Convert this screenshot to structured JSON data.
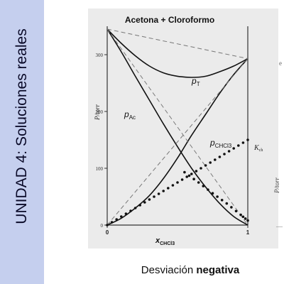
{
  "slide": {
    "sidebar_title": "UNIDAD 4: Soluciones reales",
    "caption_prefix": "Desviación ",
    "caption_bold": "negativa"
  },
  "chart_data": {
    "type": "line",
    "title": "Acetona + Cloroformo",
    "xlabel_main": "x",
    "xlabel_sub": "CHCl3",
    "ylabel_left": "P/torr",
    "ylabel_right": "P/torr",
    "xlim": [
      0,
      1
    ],
    "ylim": [
      0,
      350
    ],
    "x_ticks": [
      "0",
      "1"
    ],
    "y_ticks": [
      "0",
      "100",
      "200",
      "300"
    ],
    "pure_pressure_acetone": 345,
    "pure_pressure_chloroform": 293,
    "labels": {
      "pT": {
        "main": "p",
        "sub": "T"
      },
      "pAc": {
        "main": "p",
        "sub": "Ac"
      },
      "pCHCl3": {
        "main": "p",
        "sub": "CHCl3"
      },
      "Kch": {
        "main": "K",
        "sub": "ch"
      }
    },
    "series": [
      {
        "name": "pT",
        "style": "solid",
        "x": [
          0,
          0.1,
          0.2,
          0.3,
          0.4,
          0.5,
          0.6,
          0.7,
          0.8,
          0.9,
          1.0
        ],
        "y": [
          345,
          320,
          298,
          280,
          268,
          262,
          260,
          262,
          270,
          280,
          293
        ]
      },
      {
        "name": "pAc",
        "style": "solid",
        "x": [
          0,
          0.1,
          0.2,
          0.3,
          0.4,
          0.5,
          0.6,
          0.7,
          0.8,
          0.9,
          1.0
        ],
        "y": [
          345,
          305,
          262,
          220,
          178,
          138,
          100,
          67,
          38,
          15,
          0
        ]
      },
      {
        "name": "pCHCl3",
        "style": "solid",
        "x": [
          0,
          0.1,
          0.2,
          0.3,
          0.4,
          0.5,
          0.6,
          0.7,
          0.8,
          0.9,
          1.0
        ],
        "y": [
          0,
          12,
          30,
          52,
          82,
          118,
          158,
          195,
          232,
          265,
          293
        ]
      },
      {
        "name": "Raoult total (ideal)",
        "style": "dashed",
        "x": [
          0,
          1
        ],
        "y": [
          345,
          293
        ]
      },
      {
        "name": "Raoult acetone (ideal)",
        "style": "dashed",
        "x": [
          0,
          1
        ],
        "y": [
          345,
          0
        ]
      },
      {
        "name": "Raoult chloroform (ideal)",
        "style": "dashed",
        "x": [
          0,
          1
        ],
        "y": [
          0,
          293
        ]
      },
      {
        "name": "Henry chloroform",
        "style": "dotted",
        "x": [
          0,
          0.1,
          0.2,
          0.3,
          0.4,
          0.5,
          0.6,
          0.7,
          0.8,
          0.9,
          1.0
        ],
        "y": [
          0,
          15,
          30,
          45,
          60,
          75,
          90,
          105,
          120,
          135,
          150
        ]
      },
      {
        "name": "Henry acetone",
        "style": "dotted",
        "x": [
          0.55,
          0.65,
          0.75,
          0.85,
          0.95,
          1.0
        ],
        "y": [
          93,
          75,
          56,
          38,
          18,
          8
        ]
      }
    ]
  },
  "right_edge": {
    "ylabel": "P/torr",
    "mark": "e",
    "dash": "—"
  }
}
